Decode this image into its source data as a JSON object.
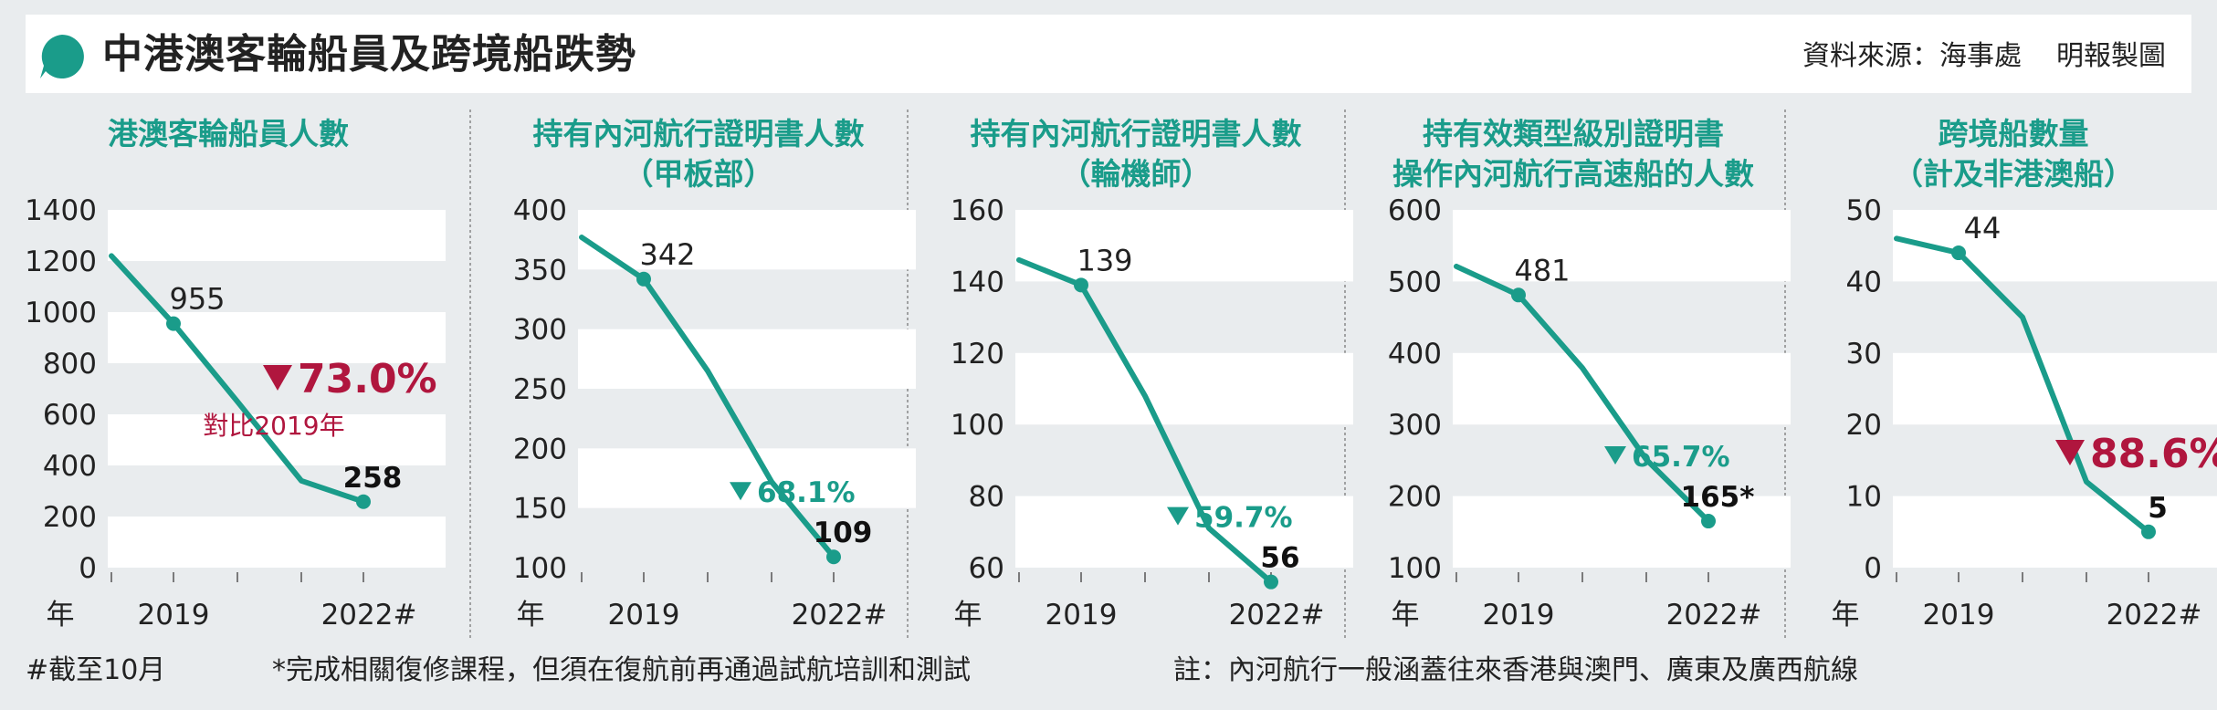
{
  "header": {
    "title": "中港澳客輪船員及跨境船跌勢",
    "source": "資料來源：海事處",
    "credit": "明報製圖"
  },
  "footer": {
    "note1": "#截至10月",
    "note2": "*完成相關復修課程，但須在復航前再通過試航培訓和測試",
    "note3": "註：內河航行一般涵蓋往來香港與澳門、廣東及廣西航線"
  },
  "colors": {
    "line": "#1a9c8a",
    "down_red": "#b0163e",
    "band": "#ffffff",
    "background": "#e9ecee"
  },
  "chart_data": [
    {
      "type": "line",
      "title": [
        "港澳客輪船員人數"
      ],
      "x_tick_labels": [
        "年",
        "2019",
        "2022#"
      ],
      "x": [
        "2018",
        "2019",
        "2020",
        "2021",
        "2022#"
      ],
      "values": [
        1220,
        955,
        650,
        340,
        258
      ],
      "y_ticks": [
        0,
        200,
        400,
        600,
        800,
        1000,
        1200,
        1400
      ],
      "ylim": [
        0,
        1400
      ],
      "point_labels": [
        {
          "x": "2019",
          "text": "955"
        },
        {
          "x": "2022#",
          "text": "258"
        }
      ],
      "change": {
        "text": "73.0%",
        "color": "red",
        "note": "對比2019年"
      }
    },
    {
      "type": "line",
      "title": [
        "持有內河航行證明書人數",
        "（甲板部）"
      ],
      "x_tick_labels": [
        "年",
        "2019",
        "2022#"
      ],
      "x": [
        "2018",
        "2019",
        "2020",
        "2021",
        "2022#"
      ],
      "values": [
        377,
        342,
        265,
        172,
        109
      ],
      "y_ticks": [
        100,
        150,
        200,
        250,
        300,
        350,
        400
      ],
      "ylim": [
        100,
        400
      ],
      "point_labels": [
        {
          "x": "2019",
          "text": "342"
        },
        {
          "x": "2022#",
          "text": "109"
        }
      ],
      "change": {
        "text": "68.1%",
        "color": "green"
      }
    },
    {
      "type": "line",
      "title": [
        "持有內河航行證明書人數",
        "（輪機師）"
      ],
      "x_tick_labels": [
        "年",
        "2019",
        "2022#"
      ],
      "x": [
        "2018",
        "2019",
        "2020",
        "2021",
        "2022#"
      ],
      "values": [
        146,
        139,
        108,
        71,
        56
      ],
      "y_ticks": [
        60,
        80,
        100,
        120,
        140,
        160
      ],
      "ylim": [
        56,
        160
      ],
      "point_labels": [
        {
          "x": "2019",
          "text": "139"
        },
        {
          "x": "2022#",
          "text": "56"
        }
      ],
      "change": {
        "text": "59.7%",
        "color": "green"
      }
    },
    {
      "type": "line",
      "title": [
        "持有效類型級別證明書",
        "操作內河航行高速船的人數"
      ],
      "x_tick_labels": [
        "年",
        "2019",
        "2022#"
      ],
      "x": [
        "2018",
        "2019",
        "2020",
        "2021",
        "2022#"
      ],
      "values": [
        521,
        481,
        379,
        251,
        165
      ],
      "y_ticks": [
        100,
        200,
        300,
        400,
        500,
        600
      ],
      "ylim": [
        100,
        600
      ],
      "point_labels": [
        {
          "x": "2019",
          "text": "481"
        },
        {
          "x": "2022#",
          "text": "165*"
        }
      ],
      "change": {
        "text": "65.7%",
        "color": "green"
      }
    },
    {
      "type": "line",
      "title": [
        "跨境船數量",
        "（計及非港澳船）"
      ],
      "x_tick_labels": [
        "年",
        "2019",
        "2022#"
      ],
      "x": [
        "2018",
        "2019",
        "2020",
        "2021",
        "2022#"
      ],
      "values": [
        46,
        44,
        35,
        12,
        5
      ],
      "y_ticks": [
        0,
        10,
        20,
        30,
        40,
        50
      ],
      "ylim": [
        0,
        50
      ],
      "point_labels": [
        {
          "x": "2019",
          "text": "44"
        },
        {
          "x": "2022#",
          "text": "5"
        }
      ],
      "change": {
        "text": "88.6%",
        "color": "red"
      }
    }
  ]
}
